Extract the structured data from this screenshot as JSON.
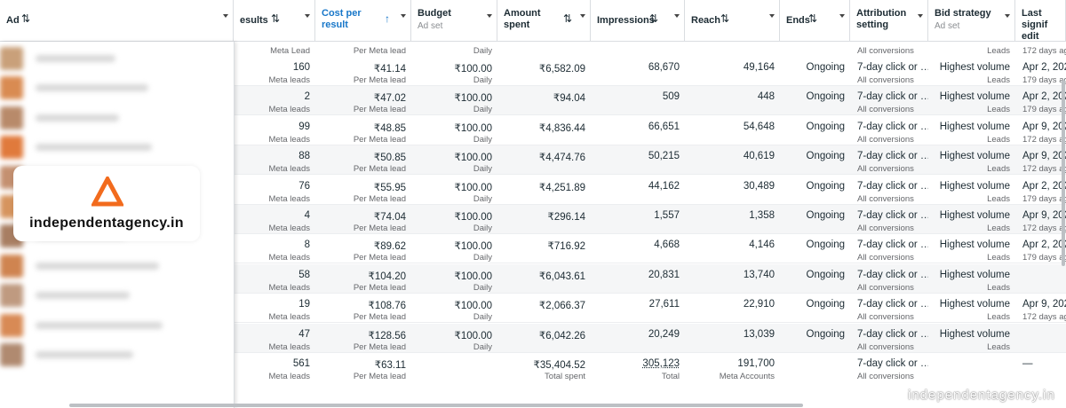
{
  "table": {
    "header": [
      {
        "title": "Ad"
      },
      {
        "title": "esults"
      },
      {
        "title": "Cost per result"
      },
      {
        "title": "Budget",
        "subtitle": "Ad set"
      },
      {
        "title": "Amount spent"
      },
      {
        "title": "Impressions"
      },
      {
        "title": "Reach"
      },
      {
        "title": "Ends"
      },
      {
        "title": "Attribution setting"
      },
      {
        "title": "Bid strategy",
        "subtitle": "Ad set"
      },
      {
        "title": "Last signif edit"
      }
    ],
    "partial_row": [
      "Meta Lead",
      "Per Meta lead",
      "Daily",
      null,
      null,
      null,
      null,
      "All conversions",
      "Leads",
      "172 days ag"
    ],
    "rows": [
      [
        [
          "160",
          "Meta leads"
        ],
        [
          "₹41.14",
          "Per Meta lead"
        ],
        [
          "₹100.00",
          "Daily"
        ],
        [
          "₹6,582.09"
        ],
        [
          "68,670"
        ],
        [
          "49,164"
        ],
        [
          "Ongoing"
        ],
        [
          "7-day click or …",
          "All conversions"
        ],
        [
          "Highest volume",
          "Leads"
        ],
        [
          "Apr 2, 202",
          "179 days ag"
        ]
      ],
      [
        [
          "2",
          "Meta leads"
        ],
        [
          "₹47.02",
          "Per Meta lead"
        ],
        [
          "₹100.00",
          "Daily"
        ],
        [
          "₹94.04"
        ],
        [
          "509"
        ],
        [
          "448"
        ],
        [
          "Ongoing"
        ],
        [
          "7-day click or …",
          "All conversions"
        ],
        [
          "Highest volume",
          "Leads"
        ],
        [
          "Apr 2, 202",
          "179 days ag"
        ]
      ],
      [
        [
          "99",
          "Meta leads"
        ],
        [
          "₹48.85",
          "Per Meta lead"
        ],
        [
          "₹100.00",
          "Daily"
        ],
        [
          "₹4,836.44"
        ],
        [
          "66,651"
        ],
        [
          "54,648"
        ],
        [
          "Ongoing"
        ],
        [
          "7-day click or …",
          "All conversions"
        ],
        [
          "Highest volume",
          "Leads"
        ],
        [
          "Apr 9, 202",
          "172 days ag"
        ]
      ],
      [
        [
          "88",
          "Meta leads"
        ],
        [
          "₹50.85",
          "Per Meta lead"
        ],
        [
          "₹100.00",
          "Daily"
        ],
        [
          "₹4,474.76"
        ],
        [
          "50,215"
        ],
        [
          "40,619"
        ],
        [
          "Ongoing"
        ],
        [
          "7-day click or …",
          "All conversions"
        ],
        [
          "Highest volume",
          "Leads"
        ],
        [
          "Apr 9, 202",
          "172 days ag"
        ]
      ],
      [
        [
          "76",
          "Meta leads"
        ],
        [
          "₹55.95",
          "Per Meta lead"
        ],
        [
          "₹100.00",
          "Daily"
        ],
        [
          "₹4,251.89"
        ],
        [
          "44,162"
        ],
        [
          "30,489"
        ],
        [
          "Ongoing"
        ],
        [
          "7-day click or …",
          "All conversions"
        ],
        [
          "Highest volume",
          "Leads"
        ],
        [
          "Apr 2, 202",
          "179 days ag"
        ]
      ],
      [
        [
          "4",
          "Meta leads"
        ],
        [
          "₹74.04",
          "Per Meta lead"
        ],
        [
          "₹100.00",
          "Daily"
        ],
        [
          "₹296.14"
        ],
        [
          "1,557"
        ],
        [
          "1,358"
        ],
        [
          "Ongoing"
        ],
        [
          "7-day click or …",
          "All conversions"
        ],
        [
          "Highest volume",
          "Leads"
        ],
        [
          "Apr 9, 202",
          "172 days ag"
        ]
      ],
      [
        [
          "8",
          "Meta leads"
        ],
        [
          "₹89.62",
          "Per Meta lead"
        ],
        [
          "₹100.00",
          "Daily"
        ],
        [
          "₹716.92"
        ],
        [
          "4,668"
        ],
        [
          "4,146"
        ],
        [
          "Ongoing"
        ],
        [
          "7-day click or …",
          "All conversions"
        ],
        [
          "Highest volume",
          "Leads"
        ],
        [
          "Apr 2, 202",
          "179 days ag"
        ]
      ],
      [
        [
          "58",
          "Meta leads"
        ],
        [
          "₹104.20",
          "Per Meta lead"
        ],
        [
          "₹100.00",
          "Daily"
        ],
        [
          "₹6,043.61"
        ],
        [
          "20,831"
        ],
        [
          "13,740"
        ],
        [
          "Ongoing"
        ],
        [
          "7-day click or …",
          "All conversions"
        ],
        [
          "Highest volume",
          "Leads"
        ],
        null
      ],
      [
        [
          "19",
          "Meta leads"
        ],
        [
          "₹108.76",
          "Per Meta lead"
        ],
        [
          "₹100.00",
          "Daily"
        ],
        [
          "₹2,066.37"
        ],
        [
          "27,611"
        ],
        [
          "22,910"
        ],
        [
          "Ongoing"
        ],
        [
          "7-day click or …",
          "All conversions"
        ],
        [
          "Highest volume",
          "Leads"
        ],
        [
          "Apr 9, 202",
          "172 days ag"
        ]
      ],
      [
        [
          "47",
          "Meta leads"
        ],
        [
          "₹128.56",
          "Per Meta lead"
        ],
        [
          "₹100.00",
          "Daily"
        ],
        [
          "₹6,042.26"
        ],
        [
          "20,249"
        ],
        [
          "13,039"
        ],
        [
          "Ongoing"
        ],
        [
          "7-day click or …",
          "All conversions"
        ],
        [
          "Highest volume",
          "Leads"
        ],
        null
      ]
    ],
    "totals": [
      [
        "561",
        "Meta leads"
      ],
      [
        "₹63.11",
        "Per Meta lead"
      ],
      null,
      [
        "₹35,404.52",
        "Total spent"
      ],
      [
        "305,123",
        "Total"
      ],
      [
        "191,700",
        "Meta Accounts"
      ],
      null,
      [
        "7-day click or …",
        "All conversions"
      ],
      null,
      [
        "—"
      ]
    ]
  },
  "logo": {
    "text": "independentagency.in"
  },
  "watermark": "independentagency.in"
}
